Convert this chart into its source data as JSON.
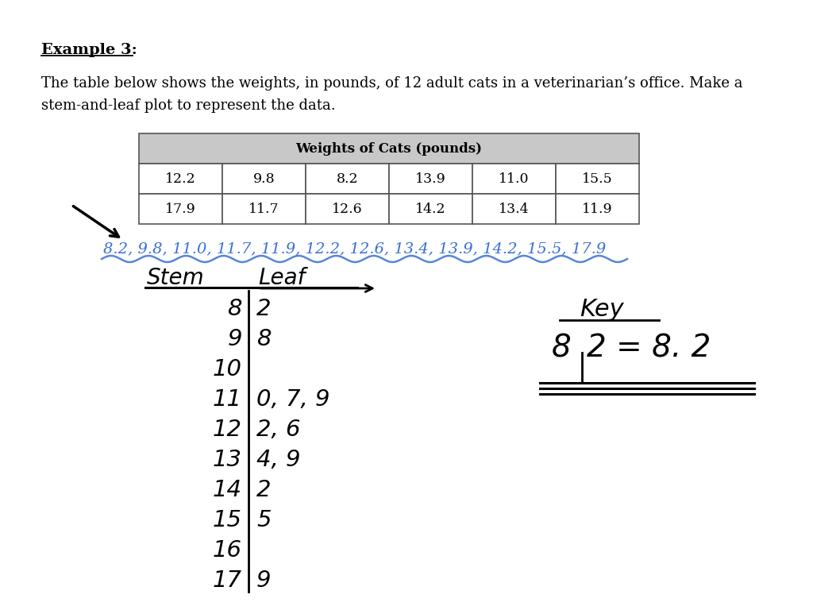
{
  "title": "Example 3:",
  "description_line1": "The table below shows the weights, in pounds, of 12 adult cats in a veterinarian’s office. Make a",
  "description_line2": "stem-and-leaf plot to represent the data.",
  "table_header": "Weights of Cats (pounds)",
  "table_row1": [
    "12.2",
    "9.8",
    "8.2",
    "13.9",
    "11.0",
    "15.5"
  ],
  "table_row2": [
    "17.9",
    "11.7",
    "12.6",
    "14.2",
    "13.4",
    "11.9"
  ],
  "sorted_list": "8.2, 9.8, 11.0, 11.7, 11.9, 12.2, 12.6, 13.4, 13.9, 14.2, 15.5, 17.9",
  "stem_label": "Stem",
  "leaf_label": "Leaf",
  "stems": [
    "8",
    "9",
    "10",
    "11",
    "12",
    "13",
    "14",
    "15",
    "16",
    "17"
  ],
  "leaves": [
    "2",
    "8",
    "",
    "0, 7, 9",
    "2, 6",
    "4, 9",
    "2",
    "5",
    "",
    "9"
  ],
  "key_label": "Key",
  "key_example_left": "8",
  "key_example_right": "2 = 8. 2",
  "background_color": "#ffffff",
  "text_color": "#000000",
  "blue_color": "#3a6fd8",
  "table_header_bg": "#c8c8c8",
  "table_border_color": "#555555"
}
